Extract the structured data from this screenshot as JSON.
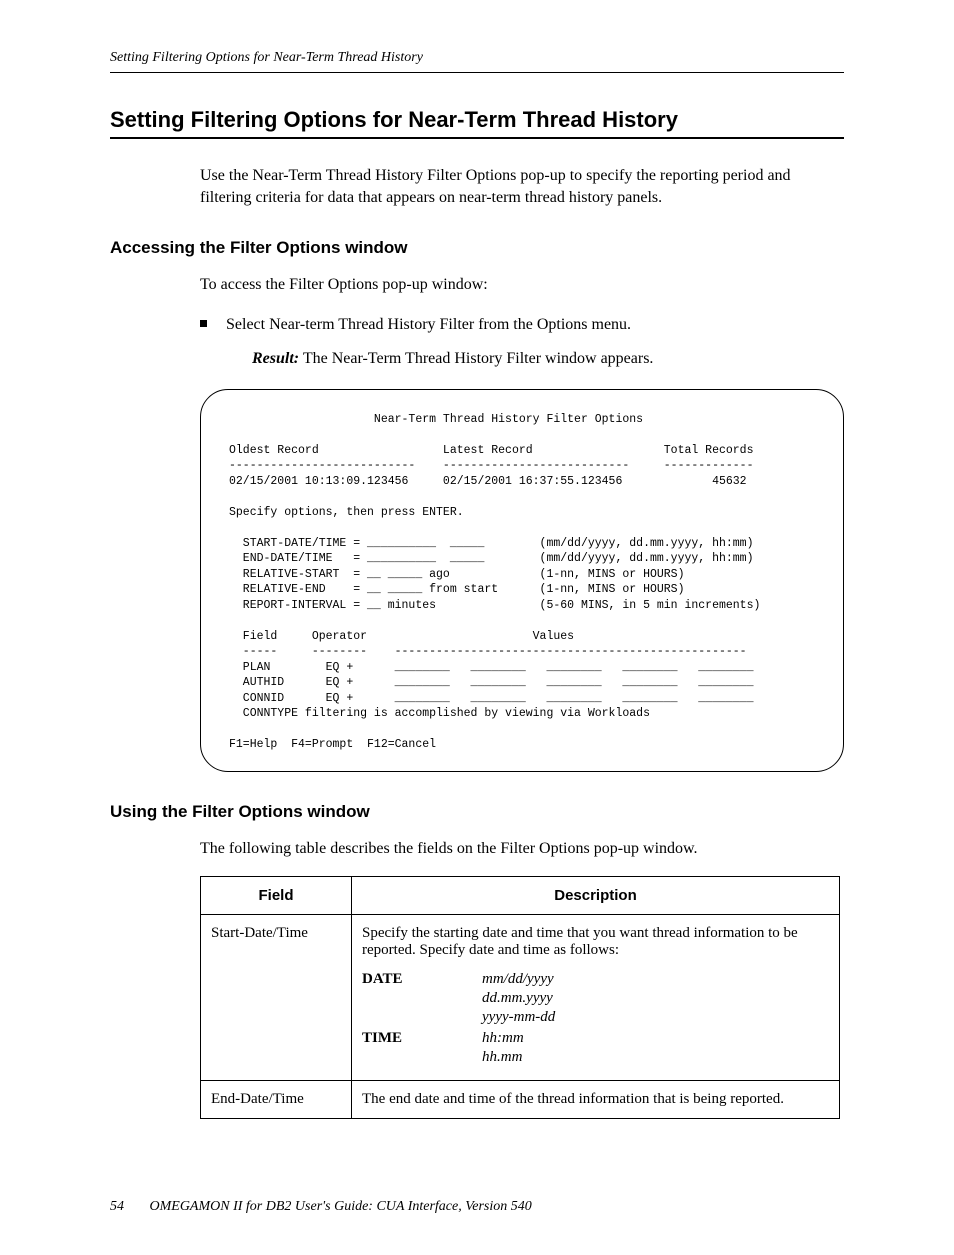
{
  "running_head": "Setting Filtering Options for Near-Term Thread History",
  "title": "Setting Filtering Options for Near-Term Thread History",
  "intro": "Use the Near-Term Thread History Filter Options pop-up to specify the reporting period and filtering criteria for data that appears on near-term thread history panels.",
  "access": {
    "heading": "Accessing the Filter Options window",
    "lead": "To access the Filter Options pop-up window:",
    "bullet": "Select Near-term Thread History Filter from the Options menu.",
    "result_label": "Result:",
    "result_text": " The Near-Term Thread History Filter window appears."
  },
  "terminal": {
    "title_line": "                     Near-Term Thread History Filter Options",
    "hdr_line": "Oldest Record                  Latest Record                   Total Records",
    "dash_line": "---------------------------    ---------------------------     -------------",
    "rec_line": "02/15/2001 10:13:09.123456     02/15/2001 16:37:55.123456             45632",
    "specify": "Specify options, then press ENTER.",
    "opt1": "  START-DATE/TIME = __________  _____        (mm/dd/yyyy, dd.mm.yyyy, hh:mm)",
    "opt2": "  END-DATE/TIME   = __________  _____        (mm/dd/yyyy, dd.mm.yyyy, hh:mm)",
    "opt3": "  RELATIVE-START  = __ _____ ago             (1-nn, MINS or HOURS)",
    "opt4": "  RELATIVE-END    = __ _____ from start      (1-nn, MINS or HOURS)",
    "opt5": "  REPORT-INTERVAL = __ minutes               (5-60 MINS, in 5 min increments)",
    "flt_hdr": "  Field     Operator                        Values",
    "flt_dsh": "  -----     --------    ---------------------------------------------------",
    "flt1": "  PLAN        EQ +      ________   ________   ________   ________   ________",
    "flt2": "  AUTHID      EQ +      ________   ________   ________   ________   ________",
    "flt3": "  CONNID      EQ +      ________   ________   ________   ________   ________",
    "flt_note": "  CONNTYPE filtering is accomplished by viewing via Workloads",
    "fkeys": "F1=Help  F4=Prompt  F12=Cancel"
  },
  "using": {
    "heading": "Using the Filter Options window",
    "lead": "The following table describes the fields on the Filter Options pop-up window."
  },
  "table": {
    "col1": "Field",
    "col2": "Description",
    "rows": [
      {
        "field": "Start-Date/Time",
        "desc": "Specify the starting date and time that you want thread information to be reported. Specify date and time as follows:",
        "defs": [
          {
            "term": "DATE",
            "vals": [
              "mm/dd/yyyy",
              "dd.mm.yyyy",
              "yyyy-mm-dd"
            ]
          },
          {
            "term": "TIME",
            "vals": [
              "hh:mm",
              "hh.mm"
            ]
          }
        ]
      },
      {
        "field": "End-Date/Time",
        "desc": "The end date and time of the thread information that is being reported."
      }
    ]
  },
  "footer": {
    "page": "54",
    "book": "OMEGAMON II for DB2 User's Guide: CUA Interface, Version 540"
  }
}
